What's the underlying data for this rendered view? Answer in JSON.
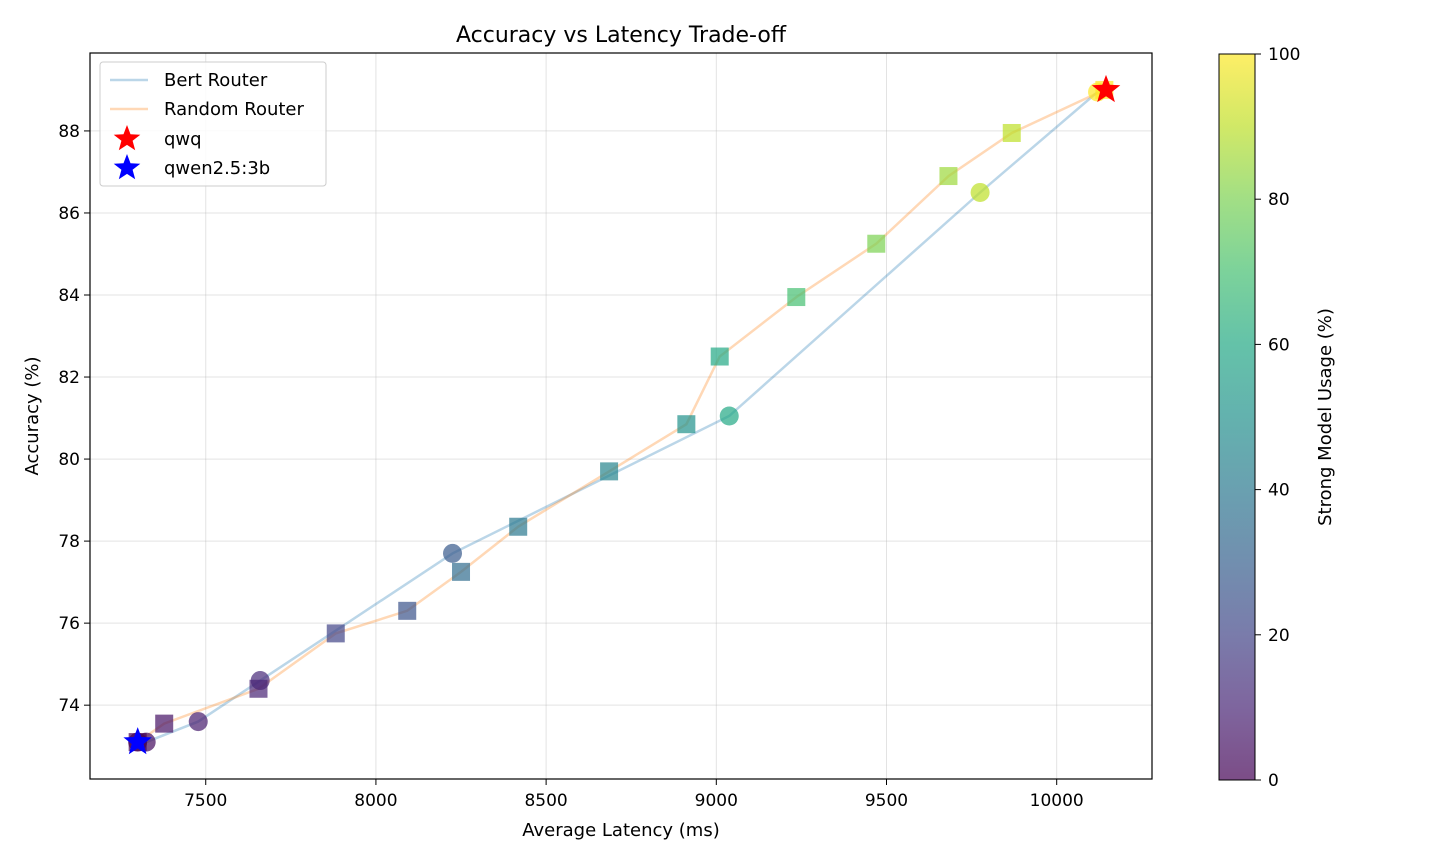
{
  "chart_data": {
    "type": "scatter",
    "title": "Accuracy vs Latency Trade-off",
    "xlabel": "Average Latency (ms)",
    "ylabel": "Accuracy (%)",
    "xlim": [
      7160,
      10280
    ],
    "ylim": [
      72.2,
      89.9
    ],
    "xticks": [
      7500,
      8000,
      8500,
      9000,
      9500,
      10000
    ],
    "yticks": [
      74,
      76,
      78,
      80,
      82,
      84,
      86,
      88
    ],
    "grid": true,
    "legend_position": "top-left",
    "colorbar": {
      "label": "Strong Model Usage (%)",
      "range": [
        0,
        100
      ],
      "ticks": [
        0,
        20,
        40,
        60,
        80,
        100
      ],
      "colormap": "viridis"
    },
    "series": [
      {
        "name": "Bert Router",
        "kind": "line-with-circles",
        "color": "#1f77b4",
        "points": [
          {
            "x": 7300,
            "y": 73.1,
            "usage": 0
          },
          {
            "x": 7325,
            "y": 73.1,
            "usage": 3
          },
          {
            "x": 7478,
            "y": 73.6,
            "usage": 8
          },
          {
            "x": 7660,
            "y": 74.6,
            "usage": 12
          },
          {
            "x": 8225,
            "y": 77.7,
            "usage": 28
          },
          {
            "x": 9038,
            "y": 81.05,
            "usage": 60
          },
          {
            "x": 9775,
            "y": 86.5,
            "usage": 90
          },
          {
            "x": 10120,
            "y": 88.95,
            "usage": 100
          }
        ]
      },
      {
        "name": "Random Router",
        "kind": "line-with-squares",
        "color": "#ff7f0e",
        "points": [
          {
            "x": 7300,
            "y": 73.1,
            "usage": 0
          },
          {
            "x": 7378,
            "y": 73.55,
            "usage": 5
          },
          {
            "x": 7655,
            "y": 74.4,
            "usage": 10
          },
          {
            "x": 7882,
            "y": 75.75,
            "usage": 20
          },
          {
            "x": 8092,
            "y": 76.3,
            "usage": 25
          },
          {
            "x": 8250,
            "y": 77.25,
            "usage": 35
          },
          {
            "x": 8418,
            "y": 78.35,
            "usage": 40
          },
          {
            "x": 8685,
            "y": 79.7,
            "usage": 45
          },
          {
            "x": 8912,
            "y": 80.85,
            "usage": 50
          },
          {
            "x": 9010,
            "y": 82.5,
            "usage": 60
          },
          {
            "x": 9235,
            "y": 83.95,
            "usage": 70
          },
          {
            "x": 9470,
            "y": 85.25,
            "usage": 80
          },
          {
            "x": 9682,
            "y": 86.9,
            "usage": 85
          },
          {
            "x": 9868,
            "y": 87.95,
            "usage": 90
          },
          {
            "x": 10140,
            "y": 89.0,
            "usage": 100
          }
        ]
      }
    ],
    "markers": [
      {
        "name": "qwq",
        "x": 10145,
        "y": 89.0,
        "color": "#ff0000",
        "shape": "star"
      },
      {
        "name": "qwen2.5:3b",
        "x": 7300,
        "y": 73.1,
        "color": "#0000ff",
        "shape": "star"
      }
    ]
  }
}
